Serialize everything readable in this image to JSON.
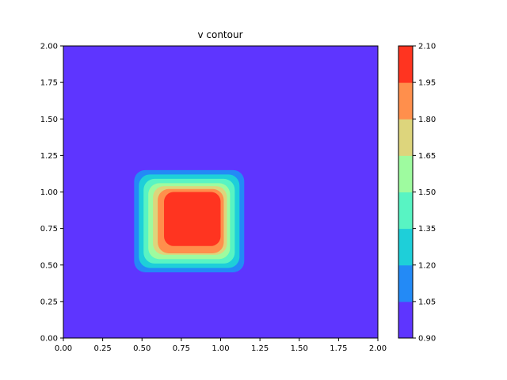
{
  "chart_data": {
    "type": "contour",
    "title": "v contour",
    "xlabel": "",
    "ylabel": "",
    "xlim": [
      0,
      2
    ],
    "ylim": [
      0,
      2
    ],
    "x_ticks": [
      "0.00",
      "0.25",
      "0.50",
      "0.75",
      "1.00",
      "1.25",
      "1.50",
      "1.75",
      "2.00"
    ],
    "y_ticks": [
      "0.00",
      "0.25",
      "0.50",
      "0.75",
      "1.00",
      "1.25",
      "1.50",
      "1.75",
      "2.00"
    ],
    "grid": false,
    "colormap": "rainbow",
    "colorbar": {
      "levels": [
        0.9,
        1.05,
        1.2,
        1.35,
        1.5,
        1.65,
        1.8,
        1.95,
        2.1
      ],
      "tick_labels": [
        "0.90",
        "1.05",
        "1.20",
        "1.35",
        "1.50",
        "1.65",
        "1.80",
        "1.95",
        "2.10"
      ],
      "colors": [
        "#5e35ff",
        "#238af6",
        "#1ecfd9",
        "#58f4c3",
        "#9efb9f",
        "#ddd57c",
        "#ff8f4c",
        "#ff3420"
      ]
    },
    "contour_regions": [
      {
        "level_min": 0.9,
        "level_max": 1.05,
        "x_range": [
          0.0,
          2.0
        ],
        "y_range": [
          0.0,
          2.0
        ]
      },
      {
        "level_min": 1.05,
        "level_max": 1.2,
        "x_range": [
          0.45,
          1.15
        ],
        "y_range": [
          0.45,
          1.15
        ]
      },
      {
        "level_min": 1.2,
        "level_max": 1.35,
        "x_range": [
          0.48,
          1.12
        ],
        "y_range": [
          0.48,
          1.12
        ]
      },
      {
        "level_min": 1.35,
        "level_max": 1.5,
        "x_range": [
          0.51,
          1.09
        ],
        "y_range": [
          0.51,
          1.09
        ]
      },
      {
        "level_min": 1.5,
        "level_max": 1.65,
        "x_range": [
          0.54,
          1.06
        ],
        "y_range": [
          0.54,
          1.06
        ]
      },
      {
        "level_min": 1.65,
        "level_max": 1.8,
        "x_range": [
          0.57,
          1.04
        ],
        "y_range": [
          0.57,
          1.04
        ]
      },
      {
        "level_min": 1.8,
        "level_max": 1.95,
        "x_range": [
          0.6,
          1.02
        ],
        "y_range": [
          0.58,
          1.02
        ]
      },
      {
        "level_min": 1.95,
        "level_max": 2.1,
        "x_range": [
          0.64,
          1.0
        ],
        "y_range": [
          0.63,
          1.0
        ]
      }
    ]
  }
}
